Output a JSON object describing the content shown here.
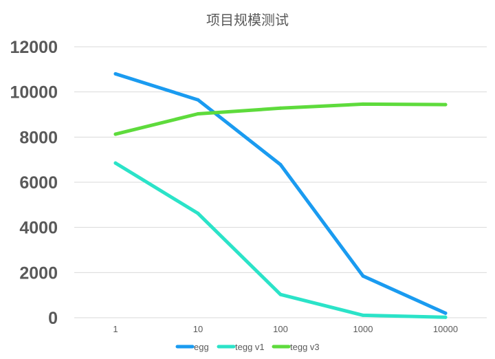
{
  "chart_data": {
    "type": "line",
    "title": "项目规模测试",
    "xlabel": "",
    "ylabel": "",
    "categories": [
      "1",
      "10",
      "100",
      "1000",
      "10000"
    ],
    "ylim": [
      0,
      12000
    ],
    "yticks": [
      "0",
      "2000",
      "4000",
      "6000",
      "8000",
      "10000",
      "12000"
    ],
    "grid": true,
    "legend_position": "bottom",
    "series": [
      {
        "name": "egg",
        "color": "#1A9BF0",
        "values": [
          10800,
          9650,
          6780,
          1850,
          200
        ]
      },
      {
        "name": "tegg v1",
        "color": "#2BE3C8",
        "values": [
          6850,
          4620,
          1030,
          110,
          20
        ]
      },
      {
        "name": "tegg v3",
        "color": "#5EDB3C",
        "values": [
          8130,
          9030,
          9280,
          9460,
          9440
        ]
      }
    ]
  }
}
